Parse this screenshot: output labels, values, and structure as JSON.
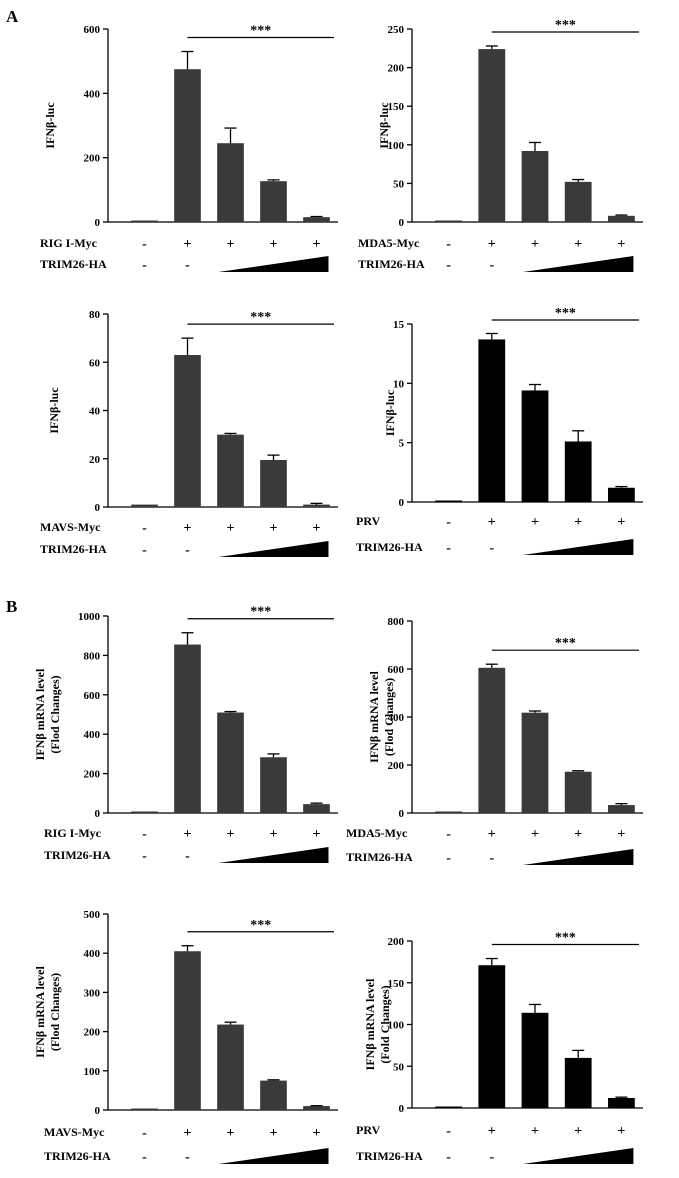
{
  "panel_labels": [
    "A",
    "B"
  ],
  "chart_data": [
    {
      "type": "bar",
      "panel": "A",
      "ylabel": "IFNβ-luc",
      "ylim": [
        0,
        600
      ],
      "yticks": [
        "0",
        "200",
        "400",
        "600"
      ],
      "values": [
        3,
        475,
        245,
        127,
        15
      ],
      "errors": [
        0,
        55,
        47,
        4,
        2
      ],
      "bar_color": "#3a3a3a",
      "significance": "***",
      "row1": {
        "label": "RIG I-Myc",
        "symbols": [
          "-",
          "+",
          "+",
          "+",
          "+"
        ]
      },
      "row2": {
        "label": "TRIM26-HA",
        "symbols": [
          "-",
          "-"
        ]
      }
    },
    {
      "type": "bar",
      "panel": "A",
      "ylabel": "IFNβ-luc",
      "ylim": [
        0,
        250
      ],
      "yticks": [
        "0",
        "50",
        "100",
        "150",
        "200",
        "250"
      ],
      "values": [
        1,
        224,
        92,
        52,
        8
      ],
      "errors": [
        0,
        4,
        11,
        3,
        1
      ],
      "bar_color": "#3a3a3a",
      "significance": "***",
      "row1": {
        "label": "MDA5-Myc",
        "symbols": [
          "-",
          "+",
          "+",
          "+",
          "+"
        ]
      },
      "row2": {
        "label": "TRIM26-HA",
        "symbols": [
          "-",
          "-"
        ]
      }
    },
    {
      "type": "bar",
      "panel": "A",
      "ylabel": "IFNβ-luc",
      "ylim": [
        0,
        80
      ],
      "yticks": [
        "0",
        "20",
        "40",
        "60",
        "80"
      ],
      "values": [
        1,
        63,
        30,
        19.5,
        1
      ],
      "errors": [
        0,
        7,
        0.5,
        2,
        0.5
      ],
      "bar_color": "#3a3a3a",
      "significance": "***",
      "row1": {
        "label": "MAVS-Myc",
        "symbols": [
          "-",
          "+",
          "+",
          "+",
          "+"
        ]
      },
      "row2": {
        "label": "TRIM26-HA",
        "symbols": [
          "-",
          "-"
        ]
      }
    },
    {
      "type": "bar",
      "panel": "A",
      "ylabel": "IFNβ-luc",
      "ylim": [
        0,
        15
      ],
      "yticks": [
        "0",
        "5",
        "10",
        "15"
      ],
      "values": [
        0.1,
        13.7,
        9.4,
        5.1,
        1.2
      ],
      "errors": [
        0,
        0.5,
        0.5,
        0.9,
        0.1
      ],
      "bar_color": "#000000",
      "significance": "***",
      "row1": {
        "label": "PRV",
        "symbols": [
          "-",
          "+",
          "+",
          "+",
          "+"
        ]
      },
      "row2": {
        "label": "TRIM26-HA",
        "symbols": [
          "-",
          "-"
        ]
      }
    },
    {
      "type": "bar",
      "panel": "B",
      "ylabel": "IFNβ mRNA level",
      "ylabel2": "(Flod Changes)",
      "ylim": [
        0,
        1000
      ],
      "yticks": [
        "0",
        "200",
        "400",
        "600",
        "800",
        "1000"
      ],
      "values": [
        2,
        855,
        510,
        283,
        45
      ],
      "errors": [
        0,
        60,
        5,
        17,
        5
      ],
      "bar_color": "#3a3a3a",
      "significance": "***",
      "row1": {
        "label": "RIG I-Myc",
        "symbols": [
          "-",
          "+",
          "+",
          "+",
          "+"
        ]
      },
      "row2": {
        "label": "TRIM26-HA",
        "symbols": [
          "-",
          "-"
        ]
      }
    },
    {
      "type": "bar",
      "panel": "B",
      "ylabel": "IFNβ mRNA level",
      "ylabel2": "(Flod Changes)",
      "ylim": [
        0,
        800
      ],
      "yticks": [
        "0",
        "200",
        "400",
        "600",
        "800"
      ],
      "values": [
        2,
        605,
        418,
        172,
        33
      ],
      "errors": [
        0,
        15,
        7,
        4,
        6
      ],
      "bar_color": "#3a3a3a",
      "significance": "***",
      "row1": {
        "label": "MDA5-Myc",
        "symbols": [
          "-",
          "+",
          "+",
          "+",
          "+"
        ]
      },
      "row2": {
        "label": "TRIM26-HA",
        "symbols": [
          "-",
          "-"
        ]
      }
    },
    {
      "type": "bar",
      "panel": "B",
      "ylabel": "IFNβ mRNA level",
      "ylabel2": "(Flod Changes)",
      "ylim": [
        0,
        500
      ],
      "yticks": [
        "0",
        "100",
        "200",
        "300",
        "400",
        "500"
      ],
      "values": [
        2,
        405,
        218,
        75,
        10
      ],
      "errors": [
        0,
        14,
        6,
        2,
        1
      ],
      "bar_color": "#3a3a3a",
      "significance": "***",
      "row1": {
        "label": "MAVS-Myc",
        "symbols": [
          "-",
          "+",
          "+",
          "+",
          "+"
        ]
      },
      "row2": {
        "label": "TRIM26-HA",
        "symbols": [
          "-",
          "-"
        ]
      }
    },
    {
      "type": "bar",
      "panel": "B",
      "ylabel": "IFNβ mRNA level",
      "ylabel2": "(Fold Changes)",
      "ylim": [
        0,
        200
      ],
      "yticks": [
        "0",
        "50",
        "100",
        "150",
        "200"
      ],
      "values": [
        0.5,
        171,
        114,
        60,
        12
      ],
      "errors": [
        0,
        8,
        10,
        9,
        1
      ],
      "bar_color": "#000000",
      "significance": "***",
      "row1": {
        "label": "PRV",
        "symbols": [
          "-",
          "+",
          "+",
          "+",
          "+"
        ]
      },
      "row2": {
        "label": "TRIM26-HA",
        "symbols": [
          "-",
          "-"
        ]
      }
    }
  ]
}
